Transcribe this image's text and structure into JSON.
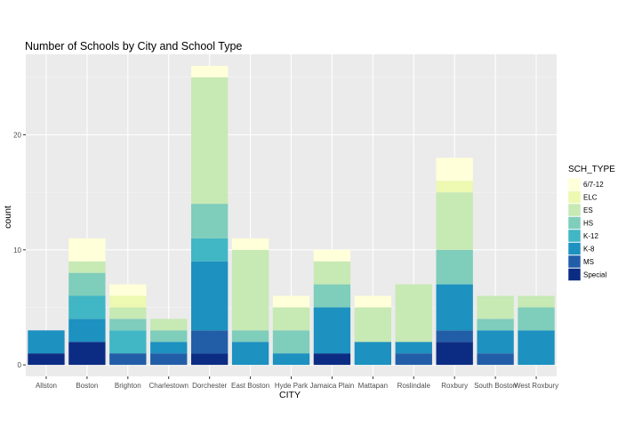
{
  "chart_data": {
    "type": "bar",
    "stacked": true,
    "title": "Number of Schools by City and School Type",
    "xlabel": "CITY",
    "ylabel": "count",
    "ylim": [
      -1,
      27
    ],
    "yticks": [
      0,
      10,
      20
    ],
    "grid": true,
    "legend_position": "right",
    "legend_title": "SCH_TYPE",
    "categories": [
      "Allston",
      "Boston",
      "Brighton",
      "Charlestown",
      "Dorchester",
      "East Boston",
      "Hyde Park",
      "Jamaica Plain",
      "Mattapan",
      "Roslindale",
      "Roxbury",
      "South Boston",
      "West Roxbury"
    ],
    "series": [
      {
        "name": "6/7-12",
        "color": "#FFFFD9",
        "values": [
          0,
          2,
          1,
          0,
          1,
          1,
          1,
          1,
          1,
          0,
          2,
          0,
          0
        ]
      },
      {
        "name": "ELC",
        "color": "#EDF8B1",
        "values": [
          0,
          0,
          1,
          0,
          0,
          0,
          0,
          0,
          0,
          0,
          1,
          0,
          0
        ]
      },
      {
        "name": "ES",
        "color": "#C7E9B4",
        "values": [
          0,
          1,
          1,
          1,
          11,
          7,
          2,
          2,
          3,
          5,
          5,
          2,
          1
        ]
      },
      {
        "name": "HS",
        "color": "#7FCDBB",
        "values": [
          0,
          2,
          1,
          1,
          3,
          1,
          2,
          2,
          0,
          0,
          3,
          1,
          2
        ]
      },
      {
        "name": "K-12",
        "color": "#41B6C4",
        "values": [
          0,
          2,
          2,
          0,
          2,
          0,
          0,
          0,
          0,
          0,
          0,
          0,
          0
        ]
      },
      {
        "name": "K-8",
        "color": "#1D91C0",
        "values": [
          2,
          2,
          0,
          1,
          6,
          2,
          1,
          4,
          2,
          1,
          4,
          2,
          3
        ]
      },
      {
        "name": "MS",
        "color": "#225EA8",
        "values": [
          0,
          0,
          1,
          1,
          2,
          0,
          0,
          0,
          0,
          1,
          1,
          1,
          0
        ]
      },
      {
        "name": "Special",
        "color": "#0C2C84",
        "values": [
          1,
          2,
          0,
          0,
          1,
          0,
          0,
          1,
          0,
          0,
          2,
          0,
          0
        ]
      }
    ]
  }
}
